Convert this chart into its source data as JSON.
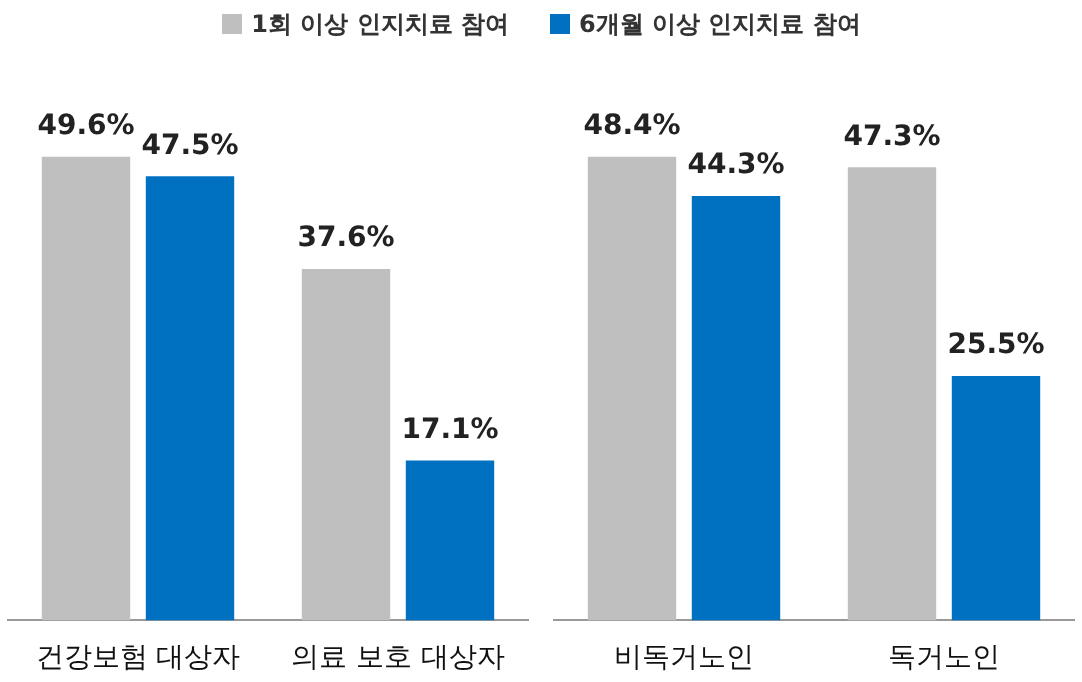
{
  "chart_data": [
    {
      "type": "bar",
      "categories": [
        "건강보험 대상자",
        "의료 보호 대상자"
      ],
      "series": [
        {
          "name": "1회 이상 인지치료 참여",
          "color": "#bfbfbf",
          "values": [
            49.6,
            37.6
          ],
          "value_labels": [
            "49.6%",
            "37.6%"
          ]
        },
        {
          "name": "6개월 이상 인지치료 참여",
          "color": "#0070c0",
          "values": [
            47.5,
            17.1
          ],
          "value_labels": [
            "47.5%",
            "17.1%"
          ]
        }
      ],
      "legend": "top",
      "grid": false,
      "tick_labels": "x"
    },
    {
      "type": "bar",
      "categories": [
        "비독거노인",
        "독거노인"
      ],
      "series": [
        {
          "color": "#bfbfbf",
          "values": [
            48.4,
            47.3
          ],
          "value_labels": [
            "48.4%",
            "47.3%"
          ]
        },
        {
          "color": "#0070c0",
          "values": [
            44.3,
            25.5
          ],
          "value_labels": [
            "44.3%",
            "25.5%"
          ]
        }
      ],
      "grid": false,
      "tick_labels": "x"
    }
  ]
}
